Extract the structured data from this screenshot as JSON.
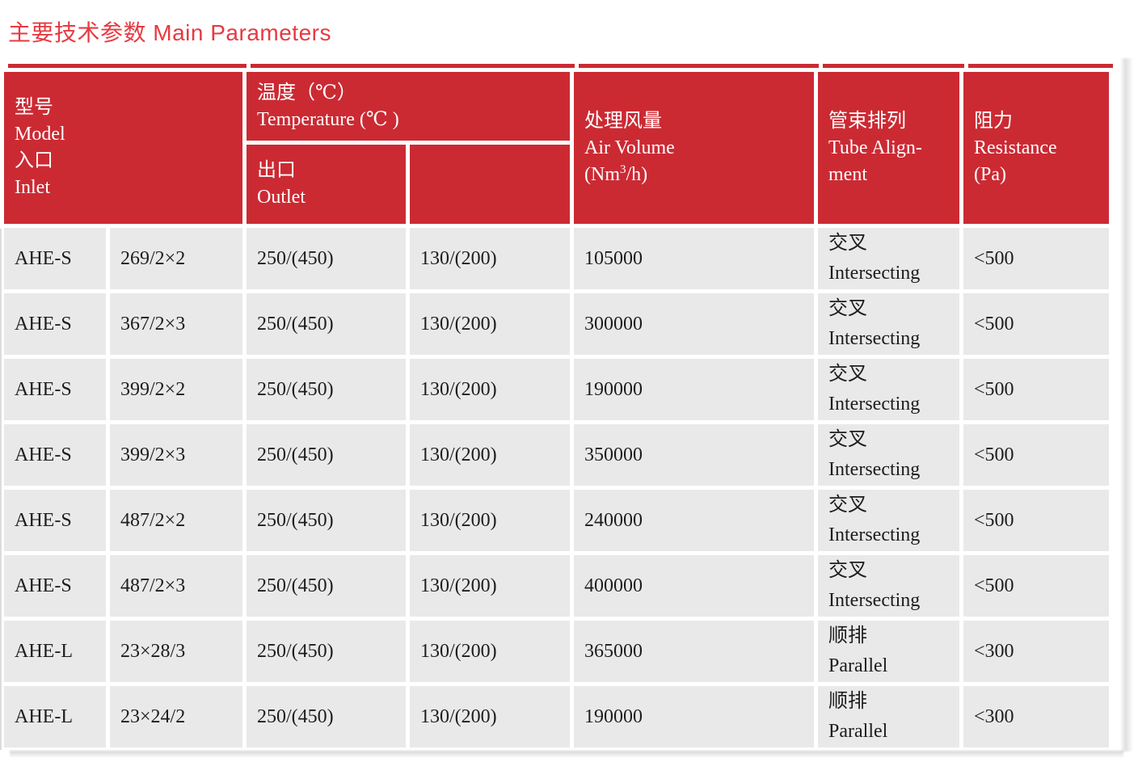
{
  "title": "主要技术参数 Main Parameters",
  "colors": {
    "header_red": "#cb2a33",
    "title_red": "#e73a41",
    "cell_gray": "#e9e9e9",
    "text_dark": "#1d1d1f"
  },
  "table": {
    "header": {
      "model_inlet": {
        "lines": [
          "型号",
          "Model",
          "入口",
          "Inlet"
        ]
      },
      "temperature": {
        "lines": [
          "温度（℃）",
          "Temperature (℃ )"
        ]
      },
      "outlet": {
        "lines": [
          "出口",
          "Outlet"
        ]
      },
      "temperature_sub2": "",
      "air_volume": {
        "zh": "处理风量",
        "en": "Air Volume",
        "unit_pre": "(Nm",
        "unit_sup": "3",
        "unit_post": "/h)"
      },
      "tube_alignment": {
        "lines": [
          "管束排列",
          "Tube Align-",
          "ment"
        ]
      },
      "resistance": {
        "lines": [
          "阻力",
          "Resistance",
          "(Pa)"
        ]
      }
    },
    "rows": [
      {
        "model": "AHE-S",
        "size": "269/2×2",
        "outlet_temp": "250/(450)",
        "temp2": "130/(200)",
        "air_volume": "105000",
        "alignment_zh": "交叉",
        "alignment_en": "Intersecting",
        "resistance": "<500"
      },
      {
        "model": "AHE-S",
        "size": "367/2×3",
        "outlet_temp": "250/(450)",
        "temp2": "130/(200)",
        "air_volume": "300000",
        "alignment_zh": "交叉",
        "alignment_en": "Intersecting",
        "resistance": "<500"
      },
      {
        "model": "AHE-S",
        "size": "399/2×2",
        "outlet_temp": "250/(450)",
        "temp2": "130/(200)",
        "air_volume": "190000",
        "alignment_zh": "交叉",
        "alignment_en": "Intersecting",
        "resistance": "<500"
      },
      {
        "model": "AHE-S",
        "size": "399/2×3",
        "outlet_temp": "250/(450)",
        "temp2": "130/(200)",
        "air_volume": "350000",
        "alignment_zh": "交叉",
        "alignment_en": "Intersecting",
        "resistance": "<500"
      },
      {
        "model": "AHE-S",
        "size": "487/2×2",
        "outlet_temp": "250/(450)",
        "temp2": "130/(200)",
        "air_volume": "240000",
        "alignment_zh": "交叉",
        "alignment_en": "Intersecting",
        "resistance": "<500"
      },
      {
        "model": "AHE-S",
        "size": "487/2×3",
        "outlet_temp": "250/(450)",
        "temp2": "130/(200)",
        "air_volume": "400000",
        "alignment_zh": "交叉",
        "alignment_en": "Intersecting",
        "resistance": "<500"
      },
      {
        "model": "AHE-L",
        "size": "23×28/3",
        "outlet_temp": "250/(450)",
        "temp2": "130/(200)",
        "air_volume": "365000",
        "alignment_zh": "顺排",
        "alignment_en": "Parallel",
        "resistance": "<300"
      },
      {
        "model": "AHE-L",
        "size": "23×24/2",
        "outlet_temp": "250/(450)",
        "temp2": "130/(200)",
        "air_volume": "190000",
        "alignment_zh": "顺排",
        "alignment_en": "Parallel",
        "resistance": "<300"
      }
    ]
  }
}
